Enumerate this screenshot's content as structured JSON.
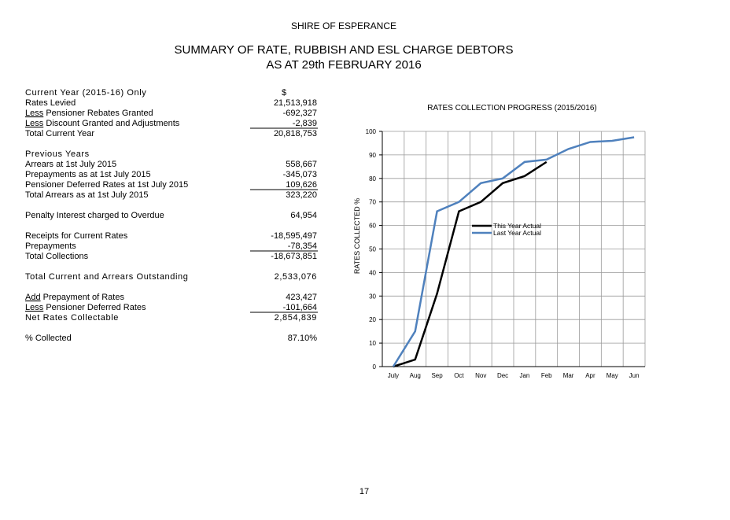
{
  "header": {
    "org": "SHIRE OF ESPERANCE",
    "title": "SUMMARY OF RATE, RUBBISH AND ESL CHARGE DEBTORS",
    "subtitle": "AS AT 29th FEBRUARY 2016"
  },
  "table": {
    "rows": [
      {
        "label": "Current Year (2015-16) Only",
        "value": "$",
        "heading": true
      },
      {
        "label": "Rates Levied",
        "value": "21,513,918"
      },
      {
        "prefix": "Less",
        "label": "Pensioner Rebates Granted",
        "value": "-692,327"
      },
      {
        "prefix": "Less",
        "label": "Discount Granted and Adjustments",
        "value": "-2,839",
        "rule": true
      },
      {
        "label": "Total Current Year",
        "value": "20,818,753"
      },
      {
        "label": "Previous Years",
        "heading": true
      },
      {
        "label": "Arrears at 1st July 2015",
        "value": "558,667"
      },
      {
        "label": "Prepayments as at 1st July 2015",
        "value": "-345,073"
      },
      {
        "label": "Pensioner Deferred Rates at 1st July 2015",
        "value": "109,626",
        "rule": true
      },
      {
        "label": "Total Arrears as at 1st July 2015",
        "value": "323,220"
      },
      {
        "label": "Penalty Interest charged to Overdue",
        "value": "64,954",
        "gap": true
      },
      {
        "label": "Receipts for Current Rates",
        "value": "-18,595,497",
        "gap": true
      },
      {
        "label": "Prepayments",
        "value": "-78,354",
        "rule": true
      },
      {
        "label": "Total Collections",
        "value": "-18,673,851"
      },
      {
        "label": "Total Current and Arrears Outstanding",
        "value": "2,533,076",
        "gap": true,
        "heading": true
      },
      {
        "prefix": "Add",
        "label": "Prepayment of Rates",
        "value": "423,427",
        "gap": true
      },
      {
        "prefix": "Less",
        "label": "Pensioner Deferred Rates",
        "value": "-101,664",
        "rule": true
      },
      {
        "label": "Net Rates Collectable",
        "value": "2,854,839",
        "heading": true
      },
      {
        "label": "% Collected",
        "value": "87.10%",
        "gap": true
      }
    ]
  },
  "chart_data": {
    "type": "line",
    "title": "RATES COLLECTION PROGRESS (2015/2016)",
    "y_label": "RATES COLLECTED %",
    "categories": [
      "July",
      "Aug",
      "Sep",
      "Oct",
      "Nov",
      "Dec",
      "Jan",
      "Feb",
      "Mar",
      "Apr",
      "May",
      "Jun"
    ],
    "series": [
      {
        "name": "This Year Actual",
        "color": "#000000",
        "values": [
          0,
          3,
          31,
          66,
          70,
          78,
          81,
          87,
          null,
          null,
          null,
          null
        ]
      },
      {
        "name": "Last Year Actual",
        "color": "#4f81bd",
        "values": [
          0,
          15,
          66,
          70,
          78,
          80,
          87,
          88,
          92.5,
          95.5,
          96,
          97.5
        ]
      }
    ],
    "ylim": [
      0,
      100
    ],
    "yticks": [
      0,
      10,
      20,
      30,
      40,
      50,
      60,
      70,
      80,
      90,
      100
    ],
    "grid": true
  },
  "footer": {
    "page": "17"
  }
}
